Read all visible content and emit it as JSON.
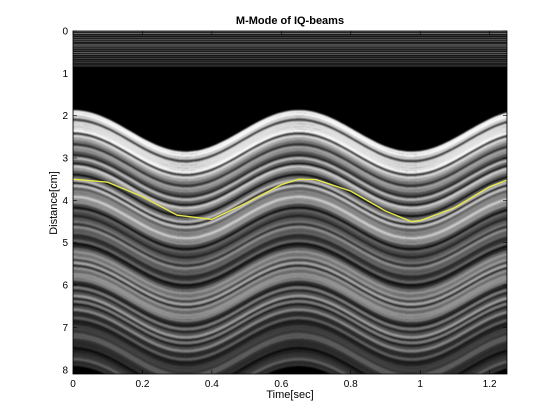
{
  "chart_data": {
    "type": "heatmap",
    "title": "M-Mode of IQ-beams",
    "xlabel": "Time[sec]",
    "ylabel": "Distance[cm]",
    "xlim": [
      0,
      1.25
    ],
    "ylim": [
      8.1,
      0
    ],
    "y_axis_direction": "reversed",
    "x_ticks": [
      0,
      0.2,
      0.4,
      0.6,
      0.8,
      1,
      1.2
    ],
    "x_tick_labels": [
      "0",
      "0.2",
      "0.4",
      "0.6",
      "0.8",
      "1",
      "1.2"
    ],
    "y_ticks": [
      0,
      1,
      2,
      3,
      4,
      5,
      6,
      7,
      8
    ],
    "y_tick_labels": [
      "0",
      "1",
      "2",
      "3",
      "4",
      "5",
      "6",
      "7",
      "8"
    ],
    "colormap": "gray",
    "tissue_motion": {
      "description_of_shape": "sinusoidal",
      "period_sec": 0.65,
      "amplitude_cm": 0.5,
      "center_depth_cm_at_t0": 3.5,
      "center_depth_cm_at_trough": 4.5
    },
    "tracked_line": {
      "color": "#e6e84a",
      "points": [
        {
          "t": 0.0,
          "depth": 3.5
        },
        {
          "t": 0.1,
          "depth": 3.57
        },
        {
          "t": 0.2,
          "depth": 3.91
        },
        {
          "t": 0.3,
          "depth": 4.35
        },
        {
          "t": 0.4,
          "depth": 4.45
        },
        {
          "t": 0.5,
          "depth": 4.06
        },
        {
          "t": 0.6,
          "depth": 3.63
        },
        {
          "t": 0.65,
          "depth": 3.5
        },
        {
          "t": 0.7,
          "depth": 3.51
        },
        {
          "t": 0.8,
          "depth": 3.78
        },
        {
          "t": 0.9,
          "depth": 4.25
        },
        {
          "t": 0.975,
          "depth": 4.5
        },
        {
          "t": 1.0,
          "depth": 4.48
        },
        {
          "t": 1.1,
          "depth": 4.17
        },
        {
          "t": 1.2,
          "depth": 3.68
        },
        {
          "t": 1.25,
          "depth": 3.52
        }
      ]
    }
  }
}
